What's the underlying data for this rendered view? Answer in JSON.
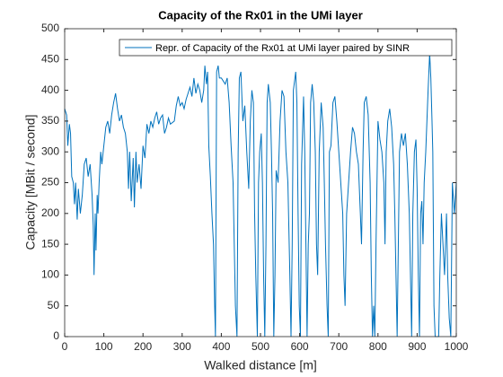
{
  "chart_data": {
    "type": "line",
    "title": "Capacity of the Rx01 in the UMi layer",
    "xlabel": "Walked distance [m]",
    "ylabel": "Capacity [MBit / second]",
    "legend": "upper right",
    "box": true,
    "xlim": [
      0,
      1000
    ],
    "xticks": [
      0,
      100,
      200,
      300,
      400,
      500,
      600,
      700,
      800,
      900,
      1000
    ],
    "ylim": [
      0,
      500
    ],
    "yticks": [
      0,
      50,
      100,
      150,
      200,
      250,
      300,
      350,
      400,
      450,
      500
    ],
    "x": [
      0,
      5,
      8,
      12,
      15,
      18,
      22,
      25,
      28,
      32,
      35,
      40,
      45,
      50,
      55,
      60,
      65,
      70,
      73,
      75,
      78,
      80,
      83,
      85,
      88,
      92,
      95,
      100,
      105,
      110,
      115,
      120,
      125,
      130,
      135,
      140,
      145,
      150,
      155,
      160,
      163,
      166,
      170,
      175,
      178,
      182,
      185,
      190,
      195,
      200,
      205,
      210,
      215,
      220,
      225,
      230,
      235,
      240,
      245,
      250,
      255,
      260,
      265,
      270,
      280,
      285,
      290,
      295,
      300,
      305,
      310,
      315,
      320,
      325,
      330,
      335,
      340,
      345,
      350,
      355,
      358,
      362,
      365,
      368,
      372,
      376,
      380,
      383,
      385,
      388,
      392,
      395,
      400,
      405,
      410,
      415,
      420,
      425,
      430,
      433,
      436,
      440,
      443,
      446,
      450,
      455,
      460,
      465,
      470,
      474,
      478,
      482,
      485,
      488,
      490,
      492,
      495,
      498,
      502,
      505,
      508,
      511,
      514,
      517,
      520,
      525,
      528,
      531,
      534,
      537,
      540,
      545,
      550,
      555,
      560,
      565,
      570,
      575,
      578,
      581,
      584,
      590,
      593,
      596,
      599,
      602,
      605,
      610,
      613,
      616,
      619,
      622,
      625,
      628,
      632,
      636,
      640,
      643,
      646,
      650,
      655,
      660,
      663,
      666,
      670,
      673,
      676,
      680,
      685,
      690,
      695,
      700,
      705,
      710,
      713,
      716,
      720,
      725,
      730,
      735,
      740,
      745,
      750,
      755,
      758,
      762,
      765,
      770,
      775,
      780,
      783,
      786,
      789,
      792,
      795,
      800,
      805,
      810,
      815,
      818,
      821,
      825,
      830,
      835,
      840,
      843,
      846,
      849,
      852,
      855,
      860,
      865,
      870,
      875,
      880,
      883,
      886,
      889,
      893,
      897,
      900,
      903,
      906,
      909,
      912,
      915,
      918,
      922,
      925,
      928,
      932,
      935,
      938,
      940,
      943,
      946,
      950,
      955,
      958,
      962,
      966,
      970,
      975,
      978,
      982,
      986,
      990,
      995,
      1000
    ],
    "series": [
      {
        "name": "Repr. of Capacity of the Rx01 at UMi layer paired by SINR",
        "color": "#0072bd",
        "values": [
          370,
          360,
          310,
          345,
          330,
          260,
          250,
          215,
          250,
          190,
          240,
          200,
          230,
          280,
          290,
          260,
          280,
          230,
          180,
          100,
          200,
          140,
          230,
          200,
          250,
          300,
          280,
          310,
          340,
          350,
          330,
          360,
          380,
          395,
          370,
          350,
          360,
          340,
          330,
          300,
          240,
          300,
          220,
          290,
          210,
          300,
          250,
          280,
          240,
          310,
          290,
          345,
          330,
          350,
          340,
          355,
          365,
          345,
          355,
          360,
          330,
          340,
          355,
          345,
          350,
          375,
          390,
          375,
          380,
          370,
          385,
          395,
          405,
          390,
          420,
          395,
          410,
          400,
          380,
          400,
          440,
          410,
          430,
          310,
          260,
          200,
          150,
          50,
          0,
          430,
          440,
          420,
          420,
          415,
          410,
          420,
          380,
          310,
          250,
          150,
          50,
          0,
          300,
          420,
          430,
          350,
          375,
          300,
          240,
          350,
          400,
          380,
          200,
          100,
          50,
          0,
          250,
          300,
          330,
          250,
          100,
          0,
          150,
          380,
          410,
          380,
          300,
          200,
          0,
          100,
          270,
          250,
          350,
          400,
          390,
          300,
          250,
          100,
          0,
          150,
          400,
          430,
          380,
          200,
          50,
          0,
          280,
          390,
          300,
          150,
          0,
          150,
          200,
          380,
          410,
          380,
          300,
          150,
          100,
          300,
          380,
          340,
          250,
          150,
          50,
          0,
          300,
          310,
          380,
          390,
          350,
          300,
          250,
          200,
          100,
          50,
          200,
          250,
          300,
          340,
          330,
          300,
          280,
          200,
          150,
          300,
          380,
          390,
          360,
          250,
          100,
          0,
          50,
          0,
          150,
          350,
          320,
          300,
          250,
          150,
          300,
          350,
          370,
          340,
          280,
          200,
          100,
          0,
          150,
          300,
          330,
          310,
          330,
          280,
          200,
          100,
          0,
          200,
          300,
          320,
          240,
          100,
          0,
          200,
          220,
          150,
          250,
          300,
          350,
          400,
          460,
          420,
          350,
          300,
          50,
          0,
          0,
          0,
          100,
          200,
          150,
          100,
          200,
          100,
          30,
          0,
          250,
          200,
          250
        ]
      }
    ]
  }
}
